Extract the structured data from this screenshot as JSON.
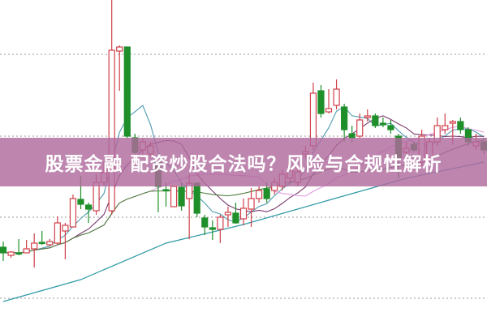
{
  "banner": {
    "title": "股票金融 配资炒股合法吗？风险与合规性解析",
    "background": "#b06a9e",
    "text_color": "#ffffff"
  },
  "chart_data": {
    "type": "candlestick",
    "title": "",
    "xlabel": "",
    "ylabel": "",
    "ylim": [
      0,
      40
    ],
    "grid": true,
    "gridlines": [
      3.2,
      13.2,
      23.2,
      33.3
    ],
    "colors": {
      "up": "#d0404a",
      "down": "#1f8f2a",
      "grid": "#999999"
    },
    "ohlc": [
      [
        9.5,
        10.2,
        7.8,
        8.8
      ],
      [
        8.5,
        9.0,
        8.2,
        8.9
      ],
      [
        8.8,
        10.5,
        8.5,
        8.7
      ],
      [
        8.8,
        10.4,
        8.8,
        9.3
      ],
      [
        9.3,
        11.2,
        7.0,
        10.0
      ],
      [
        10.1,
        11.5,
        9.8,
        10.0
      ],
      [
        9.8,
        10.5,
        9.6,
        10.2
      ],
      [
        10.0,
        13.3,
        9.8,
        12.5
      ],
      [
        11.5,
        12.5,
        8.0,
        12.2
      ],
      [
        12.0,
        16.0,
        12.0,
        15.5
      ],
      [
        15.4,
        18.3,
        14.2,
        14.8
      ],
      [
        14.7,
        15.0,
        12.5,
        14.2
      ],
      [
        14.0,
        18.5,
        13.5,
        17.5
      ],
      [
        17.5,
        20.0,
        17.0,
        18.7
      ],
      [
        14.0,
        40.0,
        13.5,
        33.8
      ],
      [
        33.7,
        34.4,
        28.8,
        34.2
      ],
      [
        34.2,
        34.2,
        23.0,
        23.2
      ],
      [
        23.0,
        23.5,
        21.0,
        21.2
      ],
      [
        21.5,
        23.0,
        20.5,
        22.5
      ],
      [
        21.0,
        22.5,
        20.8,
        22.0
      ],
      [
        20.0,
        20.2,
        13.8,
        17.0
      ],
      [
        16.6,
        17.5,
        14.5,
        16.5
      ],
      [
        14.5,
        17.0,
        14.5,
        17.0
      ],
      [
        16.9,
        17.5,
        14.0,
        14.6
      ],
      [
        15.5,
        18.5,
        10.5,
        17.4
      ],
      [
        17.4,
        17.5,
        13.2,
        13.7
      ],
      [
        13.1,
        13.5,
        11.0,
        12.0
      ],
      [
        11.9,
        12.8,
        10.4,
        11.7
      ],
      [
        11.7,
        13.5,
        10.0,
        13.2
      ],
      [
        13.5,
        14.5,
        12.0,
        13.8
      ],
      [
        13.7,
        15.0,
        12.4,
        12.5
      ],
      [
        13.0,
        15.5,
        12.2,
        14.3
      ],
      [
        14.2,
        16.8,
        12.0,
        15.5
      ],
      [
        15.5,
        17.0,
        15.0,
        16.5
      ],
      [
        16.7,
        17.5,
        15.0,
        15.5
      ],
      [
        16.5,
        18.0,
        16.0,
        17.5
      ],
      [
        17.0,
        19.0,
        16.5,
        18.5
      ],
      [
        18.0,
        19.5,
        17.5,
        19.0
      ],
      [
        17.5,
        19.5,
        17.0,
        18.8
      ],
      [
        21.0,
        22.0,
        20.5,
        21.3
      ],
      [
        22.0,
        29.8,
        21.5,
        28.5
      ],
      [
        28.8,
        29.5,
        25.5,
        26.0
      ],
      [
        26.2,
        29.0,
        26.0,
        26.6
      ],
      [
        27.0,
        30.2,
        26.5,
        29.0
      ],
      [
        26.8,
        27.2,
        22.5,
        24.0
      ],
      [
        23.5,
        24.5,
        22.5,
        23.0
      ],
      [
        23.2,
        26.0,
        23.0,
        25.2
      ],
      [
        25.5,
        26.5,
        25.0,
        25.7
      ],
      [
        25.7,
        26.0,
        24.2,
        24.5
      ],
      [
        24.8,
        25.5,
        24.3,
        24.6
      ],
      [
        24.5,
        25.2,
        23.5,
        24.0
      ],
      [
        23.2,
        23.5,
        18.0,
        20.5
      ],
      [
        21.2,
        22.5,
        19.5,
        21.7
      ],
      [
        22.2,
        22.5,
        21.3,
        21.5
      ],
      [
        20.0,
        24.0,
        19.5,
        23.2
      ],
      [
        20.5,
        23.0,
        20.0,
        22.5
      ],
      [
        22.5,
        25.5,
        22.0,
        24.5
      ],
      [
        24.0,
        26.0,
        23.5,
        24.5
      ],
      [
        24.8,
        25.2,
        22.2,
        25.0
      ],
      [
        25.0,
        25.5,
        23.5,
        24.0
      ],
      [
        24.0,
        24.3,
        22.0,
        22.5
      ],
      [
        22.0,
        23.5,
        21.5,
        22.5
      ],
      [
        22.5,
        23.0,
        21.0,
        21.5
      ]
    ],
    "moving_averages": [
      {
        "period": 5,
        "color": "#4f9bb0"
      },
      {
        "period": 10,
        "color": "#7a3a6c"
      },
      {
        "period": 20,
        "color": "#e59be3"
      },
      {
        "period": 30,
        "color": "#4e7d3e"
      }
    ],
    "long_trend": {
      "color": "#2f9aa6",
      "points": [
        [
          0,
          2.8
        ],
        [
          10,
          5.5
        ],
        [
          21,
          10.0
        ],
        [
          31,
          12.3
        ],
        [
          42,
          15.3
        ],
        [
          52,
          18.0
        ],
        [
          62,
          20.0
        ]
      ]
    }
  }
}
